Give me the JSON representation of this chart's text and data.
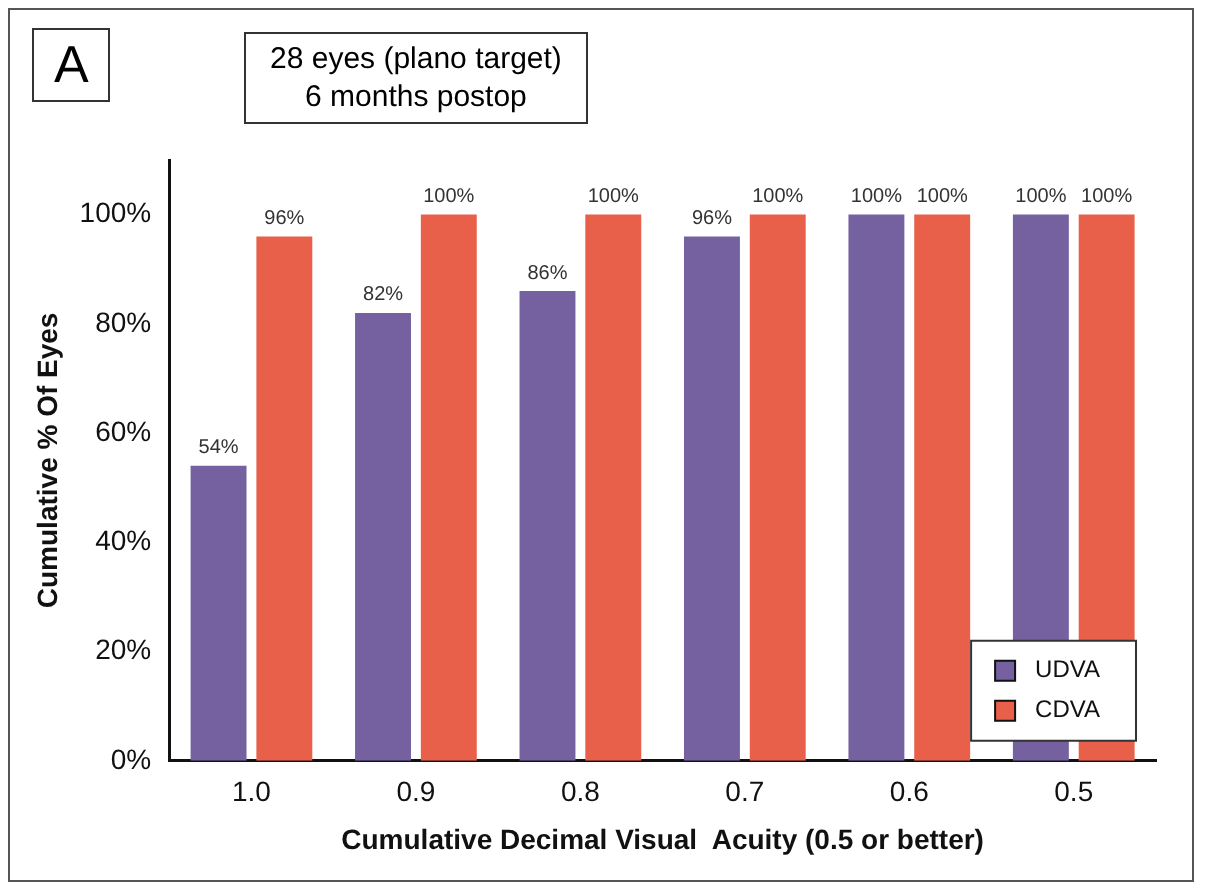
{
  "chart_data": {
    "type": "bar",
    "title": "28 eyes (plano target)",
    "subtitle": "6 months postop",
    "annotations": [
      "A"
    ],
    "xlabel": "Cumulative Decimal Visual  Acuity (0.5 or better)",
    "ylabel": "Cumulative % Of Eyes",
    "categories": [
      "1.0",
      "0.9",
      "0.8",
      "0.7",
      "0.6",
      "0.5"
    ],
    "series": [
      {
        "name": "UDVA",
        "color": "#7560a0",
        "values": [
          54,
          82,
          86,
          96,
          100,
          100
        ],
        "value_labels": [
          "54%",
          "82%",
          "86%",
          "96%",
          "100%",
          "100%"
        ]
      },
      {
        "name": "CDVA",
        "color": "#e8604a",
        "values": [
          96,
          100,
          100,
          100,
          100,
          100
        ],
        "value_labels": [
          "96%",
          "100%",
          "100%",
          "100%",
          "100%",
          "100%"
        ]
      }
    ],
    "ylim": [
      0,
      110
    ],
    "yticks": [
      {
        "value": 0,
        "label": "0%"
      },
      {
        "value": 20,
        "label": "20%"
      },
      {
        "value": 40,
        "label": "40%"
      },
      {
        "value": 60,
        "label": "60%"
      },
      {
        "value": 80,
        "label": "80%"
      },
      {
        "value": 100,
        "label": "100%"
      }
    ],
    "grid": false,
    "legend": "bottom right"
  }
}
